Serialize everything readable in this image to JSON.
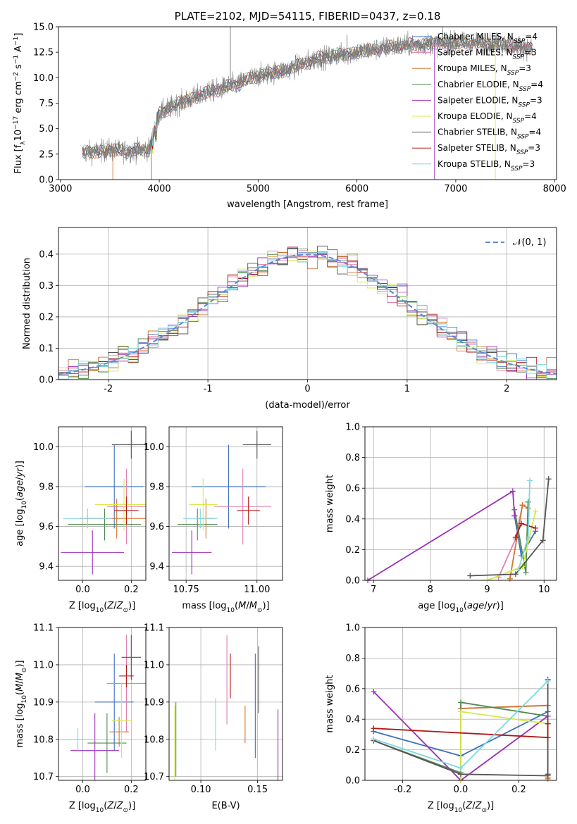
{
  "chart_data": [
    {
      "id": "spectrum",
      "type": "line",
      "title": "PLATE=2102, MJD=54115, FIBERID=0437, z=0.18",
      "xlabel": "wavelength [Angstrom, rest frame]",
      "ylabel": "Flux [f_λ 10^-17 erg cm^-2 s^-1 A^-1]",
      "xlim": [
        2980,
        8020
      ],
      "ylim": [
        0,
        15
      ],
      "xticks": [
        3000,
        4000,
        5000,
        6000,
        7000,
        8000
      ],
      "yticks": [
        0.0,
        2.5,
        5.0,
        7.5,
        10.0,
        12.5,
        15.0
      ],
      "legend_position": "right",
      "data_range": [
        3220,
        7780
      ],
      "continuum_knots": {
        "x": [
          3220,
          3500,
          3700,
          3900,
          4000,
          4200,
          4500,
          4800,
          5000,
          5300,
          5600,
          6000,
          6400,
          6800,
          7200,
          7500,
          7780
        ],
        "y": [
          2.6,
          2.9,
          2.8,
          3.0,
          6.5,
          7.5,
          8.6,
          9.4,
          10.2,
          10.8,
          11.9,
          12.5,
          13.1,
          13.4,
          13.4,
          13.3,
          12.8
        ]
      },
      "series": [
        {
          "name": "Chabrier MILES, N_SSP=4",
          "color": "#3d6fbf"
        },
        {
          "name": "Salpeter MILES, N_SSP=3",
          "color": "#e07fb0"
        },
        {
          "name": "Kroupa MILES, N_SSP=3",
          "color": "#d4752f"
        },
        {
          "name": "Chabrier ELODIE, N_SSP=4",
          "color": "#4f8a4f"
        },
        {
          "name": "Salpeter ELODIE, N_SSP=3",
          "color": "#9b30b8"
        },
        {
          "name": "Kroupa ELODIE, N_SSP=4",
          "color": "#d8e84a"
        },
        {
          "name": "Chabrier STELIB, N_SSP=4",
          "color": "#555555"
        },
        {
          "name": "Salpeter STELIB, N_SSP=3",
          "color": "#b01818"
        },
        {
          "name": "Kroupa STELIB, N_SSP=3",
          "color": "#7fd6e0"
        }
      ]
    },
    {
      "id": "residuals",
      "type": "line",
      "xlabel": "(data-model)/error",
      "ylabel": "Normed distribution",
      "xlim": [
        -2.5,
        2.5
      ],
      "ylim": [
        0,
        0.485
      ],
      "xticks": [
        -2,
        -1,
        0,
        1,
        2
      ],
      "yticks": [
        0.0,
        0.1,
        0.2,
        0.3,
        0.4
      ],
      "grid": true,
      "legend": "𝒩(0, 1)",
      "legend_position": "top-right",
      "histogram_bins": {
        "start": -2.5,
        "width": 0.1,
        "count": 50
      },
      "line_colors": [
        "#3d6fbf",
        "#e07fb0",
        "#d4752f",
        "#4f8a4f",
        "#9b30b8",
        "#d8e84a",
        "#555555",
        "#b01818",
        "#7fd6e0"
      ]
    },
    {
      "id": "age-vs-Z",
      "type": "scatter",
      "xlabel": "Z [log10(Z/Z⊙)]",
      "ylabel": "age [log10(age/yr)]",
      "xlim": [
        -0.1,
        0.26
      ],
      "ylim": [
        9.33,
        10.1
      ],
      "xticks": [
        0.0,
        0.2
      ],
      "yticks": [
        9.4,
        9.6,
        9.8,
        10.0
      ],
      "grid": true,
      "points": [
        {
          "color": "#3d6fbf",
          "x": 0.13,
          "xerr": 0.12,
          "y": 9.8,
          "yerr": 0.21
        },
        {
          "color": "#e07fb0",
          "x": 0.18,
          "xerr": 0.08,
          "y": 9.7,
          "yerr": 0.19
        },
        {
          "color": "#d4752f",
          "x": 0.14,
          "xerr": 0.15,
          "y": 9.64,
          "yerr": 0.1
        },
        {
          "color": "#4f8a4f",
          "x": 0.09,
          "xerr": 0.15,
          "y": 9.61,
          "yerr": 0.08
        },
        {
          "color": "#9b30b8",
          "x": 0.04,
          "xerr": 0.13,
          "y": 9.47,
          "yerr": 0.11
        },
        {
          "color": "#d8e84a",
          "x": 0.17,
          "xerr": 0.12,
          "y": 9.71,
          "yerr": 0.13
        },
        {
          "color": "#555555",
          "x": 0.2,
          "xerr": 0.08,
          "y": 10.01,
          "yerr": 0.07
        },
        {
          "color": "#b01818",
          "x": 0.18,
          "xerr": 0.05,
          "y": 9.68,
          "yerr": 0.07
        },
        {
          "color": "#7fd6e0",
          "x": 0.02,
          "xerr": 0.1,
          "y": 9.64,
          "yerr": 0.05
        }
      ]
    },
    {
      "id": "age-vs-mass",
      "type": "scatter",
      "xlabel": "mass [log10(M/M⊙)]",
      "ylabel": "",
      "xlim": [
        10.69,
        11.09
      ],
      "ylim": [
        9.33,
        10.1
      ],
      "xticks": [
        10.75,
        11.0
      ],
      "yticks": [
        9.4,
        9.6,
        9.8,
        10.0
      ],
      "grid": true,
      "points": [
        {
          "color": "#3d6fbf",
          "x": 10.9,
          "xerr": 0.13,
          "y": 9.8,
          "yerr": 0.21
        },
        {
          "color": "#e07fb0",
          "x": 10.95,
          "xerr": 0.1,
          "y": 9.7,
          "yerr": 0.19
        },
        {
          "color": "#d4752f",
          "x": 10.82,
          "xerr": 0.03,
          "y": 9.64,
          "yerr": 0.1
        },
        {
          "color": "#4f8a4f",
          "x": 10.79,
          "xerr": 0.07,
          "y": 9.61,
          "yerr": 0.08
        },
        {
          "color": "#9b30b8",
          "x": 10.77,
          "xerr": 0.07,
          "y": 9.47,
          "yerr": 0.11
        },
        {
          "color": "#d8e84a",
          "x": 10.81,
          "xerr": 0.05,
          "y": 9.71,
          "yerr": 0.13
        },
        {
          "color": "#555555",
          "x": 11.0,
          "xerr": 0.05,
          "y": 10.01,
          "yerr": 0.07
        },
        {
          "color": "#b01818",
          "x": 10.97,
          "xerr": 0.04,
          "y": 9.68,
          "yerr": 0.07
        },
        {
          "color": "#7fd6e0",
          "x": 10.8,
          "xerr": 0.06,
          "y": 9.64,
          "yerr": 0.05
        }
      ]
    },
    {
      "id": "weight-vs-age",
      "type": "line",
      "xlabel": "age [log10(age/yr)]",
      "ylabel": "mass weight",
      "xlim": [
        6.85,
        10.22
      ],
      "ylim": [
        0,
        1
      ],
      "xticks": [
        7,
        8,
        9,
        10
      ],
      "yticks": [
        0.0,
        0.2,
        0.4,
        0.6,
        0.8,
        1.0
      ],
      "grid": true,
      "series": [
        {
          "color": "#3d6fbf",
          "x": [
            9.48,
            9.6,
            9.85
          ],
          "y": [
            0.42,
            0.16,
            0.32
          ]
        },
        {
          "color": "#e07fb0",
          "x": [
            9.2,
            9.5,
            9.62
          ],
          "y": [
            0.02,
            0.27,
            0.49
          ]
        },
        {
          "color": "#d4752f",
          "x": [
            9.4,
            9.62,
            9.72
          ],
          "y": [
            0.01,
            0.49,
            0.47
          ]
        },
        {
          "color": "#4f8a4f",
          "x": [
            9.48,
            9.68,
            9.72
          ],
          "y": [
            0.46,
            0.05,
            0.51
          ]
        },
        {
          "color": "#9b30b8",
          "x": [
            6.9,
            9.45,
            9.48
          ],
          "y": [
            0.0,
            0.58,
            0.42
          ]
        },
        {
          "color": "#d8e84a",
          "x": [
            9.0,
            9.62,
            9.85
          ],
          "y": [
            0.0,
            0.09,
            0.45
          ]
        },
        {
          "color": "#555555",
          "x": [
            8.7,
            9.5,
            9.98,
            10.08
          ],
          "y": [
            0.03,
            0.04,
            0.26,
            0.66
          ]
        },
        {
          "color": "#b01818",
          "x": [
            9.5,
            9.6,
            9.85
          ],
          "y": [
            0.28,
            0.37,
            0.34
          ]
        },
        {
          "color": "#7fd6e0",
          "x": [
            9.55,
            9.72,
            9.75
          ],
          "y": [
            0.07,
            0.28,
            0.65
          ]
        }
      ]
    },
    {
      "id": "mass-vs-Z",
      "type": "scatter",
      "xlabel": "Z [log10(Z/Z⊙)]",
      "ylabel": "mass [log10(M/M⊙)]",
      "xlim": [
        -0.1,
        0.26
      ],
      "ylim": [
        10.69,
        11.1
      ],
      "xticks": [
        0.0,
        0.2
      ],
      "yticks": [
        10.7,
        10.8,
        10.9,
        11.0,
        11.1
      ],
      "grid": true,
      "points": [
        {
          "color": "#3d6fbf",
          "x": 0.13,
          "xerr": 0.08,
          "y": 10.9,
          "yerr": 0.13
        },
        {
          "color": "#e07fb0",
          "x": 0.18,
          "xerr": 0.08,
          "y": 10.95,
          "yerr": 0.13
        },
        {
          "color": "#d4752f",
          "x": 0.15,
          "xerr": 0.04,
          "y": 10.82,
          "yerr": 0.04
        },
        {
          "color": "#4f8a4f",
          "x": 0.1,
          "xerr": 0.08,
          "y": 10.79,
          "yerr": 0.08
        },
        {
          "color": "#9b30b8",
          "x": 0.05,
          "xerr": 0.1,
          "y": 10.77,
          "yerr": 0.1
        },
        {
          "color": "#d8e84a",
          "x": 0.16,
          "xerr": 0.04,
          "y": 10.85,
          "yerr": 0.1
        },
        {
          "color": "#555555",
          "x": 0.2,
          "xerr": 0.04,
          "y": 11.02,
          "yerr": 0.06
        },
        {
          "color": "#b01818",
          "x": 0.18,
          "xerr": 0.03,
          "y": 10.97,
          "yerr": 0.03
        },
        {
          "color": "#7fd6e0",
          "x": -0.02,
          "xerr": 0.08,
          "y": 10.8,
          "yerr": 0.03
        }
      ]
    },
    {
      "id": "mass-vs-ebv",
      "type": "scatter",
      "xlabel": "E(B-V)",
      "ylabel": "",
      "xlim": [
        0.072,
        0.172
      ],
      "ylim": [
        10.69,
        11.1
      ],
      "xticks": [
        0.1,
        0.15
      ],
      "yticks": [
        10.7,
        10.8,
        10.9,
        11.0,
        11.1
      ],
      "grid": true,
      "points": [
        {
          "color": "#3d6fbf",
          "x": 0.148,
          "y": 10.89,
          "yerr": 0.14
        },
        {
          "color": "#e07fb0",
          "x": 0.123,
          "y": 10.96,
          "yerr": 0.12
        },
        {
          "color": "#d4752f",
          "x": 0.139,
          "y": 10.84,
          "yerr": 0.05
        },
        {
          "color": "#4f8a4f",
          "x": 0.078,
          "y": 10.8,
          "yerr": 0.1
        },
        {
          "color": "#9b30b8",
          "x": 0.168,
          "y": 10.78,
          "yerr": 0.1
        },
        {
          "color": "#d8e84a",
          "x": 0.077,
          "y": 10.79,
          "yerr": 0.1
        },
        {
          "color": "#555555",
          "x": 0.151,
          "y": 10.96,
          "yerr": 0.09
        },
        {
          "color": "#b01818",
          "x": 0.126,
          "y": 10.97,
          "yerr": 0.06
        },
        {
          "color": "#7fd6e0",
          "x": 0.113,
          "y": 10.84,
          "yerr": 0.07
        }
      ]
    },
    {
      "id": "weight-vs-Z",
      "type": "line",
      "xlabel": "Z [log10(Z/Z⊙)]",
      "ylabel": "mass weight",
      "xlim": [
        -0.33,
        0.33
      ],
      "ylim": [
        0,
        1
      ],
      "xticks": [
        -0.2,
        0.0,
        0.2
      ],
      "yticks": [
        0.0,
        0.2,
        0.4,
        0.6,
        0.8,
        1.0
      ],
      "grid": true,
      "series": [
        {
          "color": "#3d6fbf",
          "x": [
            -0.3,
            0.0,
            0.3
          ],
          "y": [
            0.32,
            0.16,
            0.45
          ]
        },
        {
          "color": "#e07fb0",
          "x": [
            0.0,
            0.3,
            0.3
          ],
          "y": [
            0.47,
            0.49,
            0.02
          ]
        },
        {
          "color": "#d4752f",
          "x": [
            0.0,
            0.3,
            0.3
          ],
          "y": [
            0.47,
            0.49,
            0.01
          ]
        },
        {
          "color": "#4f8a4f",
          "x": [
            -0.3,
            0.0,
            0.0,
            0.3
          ],
          "y": [
            0.26,
            0.05,
            0.51,
            0.42
          ]
        },
        {
          "color": "#9b30b8",
          "x": [
            -0.3,
            0.0,
            0.3
          ],
          "y": [
            0.58,
            0.0,
            0.42
          ]
        },
        {
          "color": "#d8e84a",
          "x": [
            0.0,
            0.0,
            0.3
          ],
          "y": [
            0.0,
            0.45,
            0.37
          ]
        },
        {
          "color": "#555555",
          "x": [
            -0.3,
            0.0,
            0.3,
            0.3,
            0.3
          ],
          "y": [
            0.26,
            0.04,
            0.03,
            0.66,
            0.04
          ]
        },
        {
          "color": "#b01818",
          "x": [
            -0.3,
            0.3,
            0.3
          ],
          "y": [
            0.34,
            0.28,
            0.37
          ]
        },
        {
          "color": "#7fd6e0",
          "x": [
            -0.3,
            0.0,
            0.3
          ],
          "y": [
            0.27,
            0.08,
            0.65
          ]
        }
      ]
    }
  ]
}
